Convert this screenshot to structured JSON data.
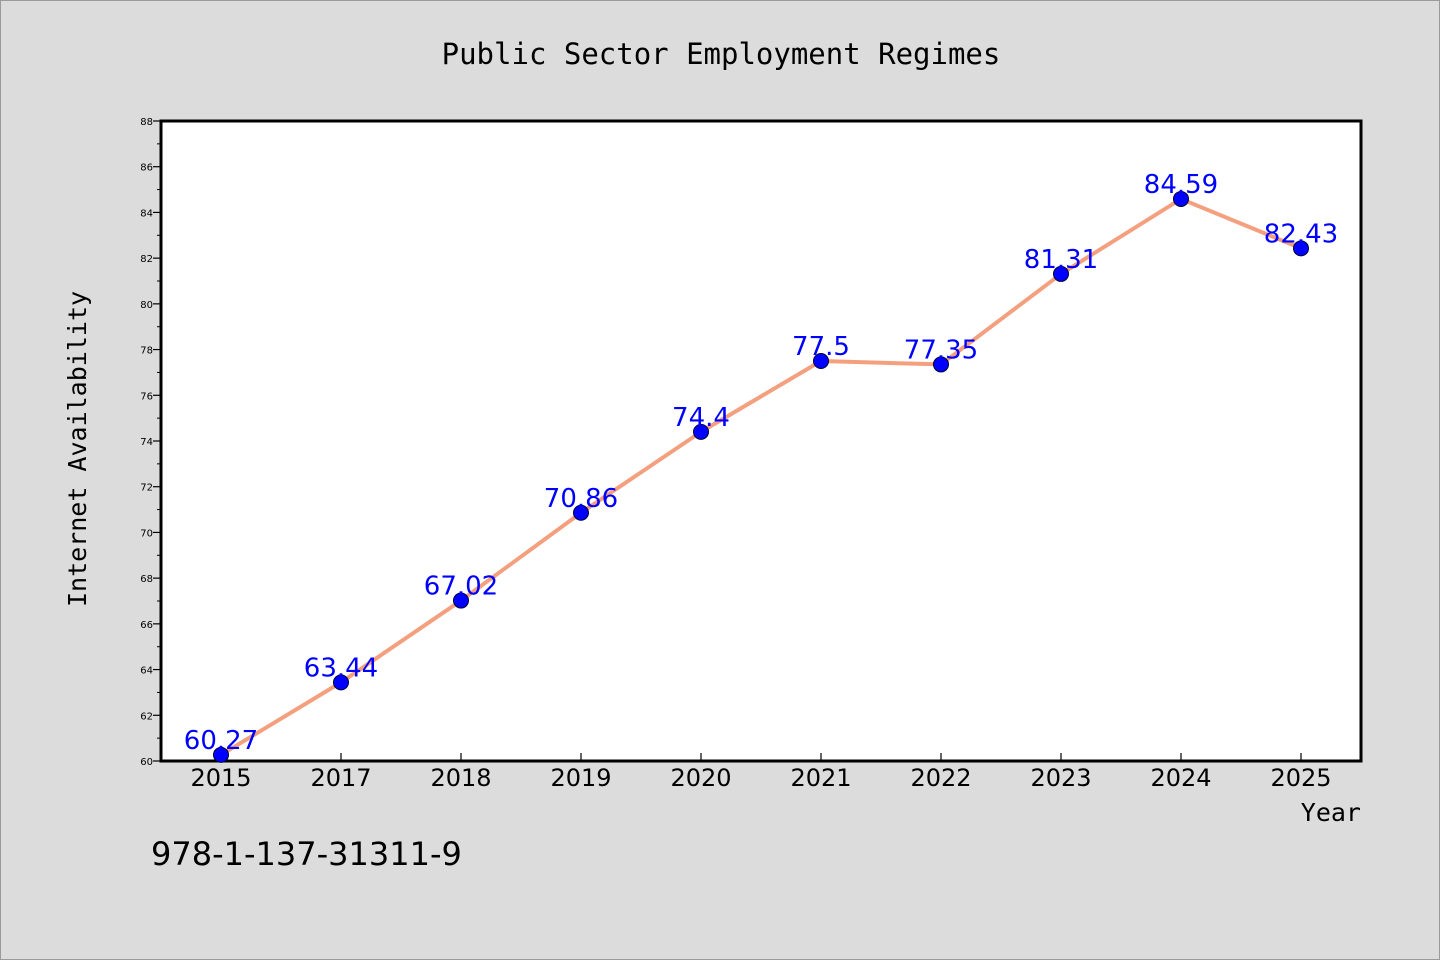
{
  "chart_data": {
    "type": "line",
    "title": "Public Sector Employment Regimes",
    "xlabel": "Year",
    "ylabel": "Internet Availability",
    "categories": [
      "2015",
      "2017",
      "2018",
      "2019",
      "2020",
      "2021",
      "2022",
      "2023",
      "2024",
      "2025"
    ],
    "series": [
      {
        "values": [
          60.27,
          63.44,
          67.02,
          70.86,
          74.4,
          77.5,
          77.35,
          81.31,
          84.59,
          82.43
        ],
        "labels": [
          "60.27",
          "63.44",
          "67.02",
          "70.86",
          "74.4",
          "77.5",
          "77.35",
          "81.31",
          "84.59",
          "82.43"
        ],
        "line_color": "#f4a07e",
        "marker_color": "#0000ff"
      }
    ],
    "ylim": [
      60,
      88
    ],
    "yticks": [
      60,
      62,
      64,
      66,
      68,
      70,
      72,
      74,
      76,
      78,
      80,
      82,
      84,
      86,
      88
    ],
    "grid": false,
    "legend": "none"
  },
  "annotation": {
    "isbn": "978-1-137-31311-9"
  },
  "colors": {
    "background": "#dcdcdc",
    "plot_background": "#ffffff",
    "line": "#f4a07e",
    "marker": "#0000ff",
    "data_label": "#0000ff"
  }
}
